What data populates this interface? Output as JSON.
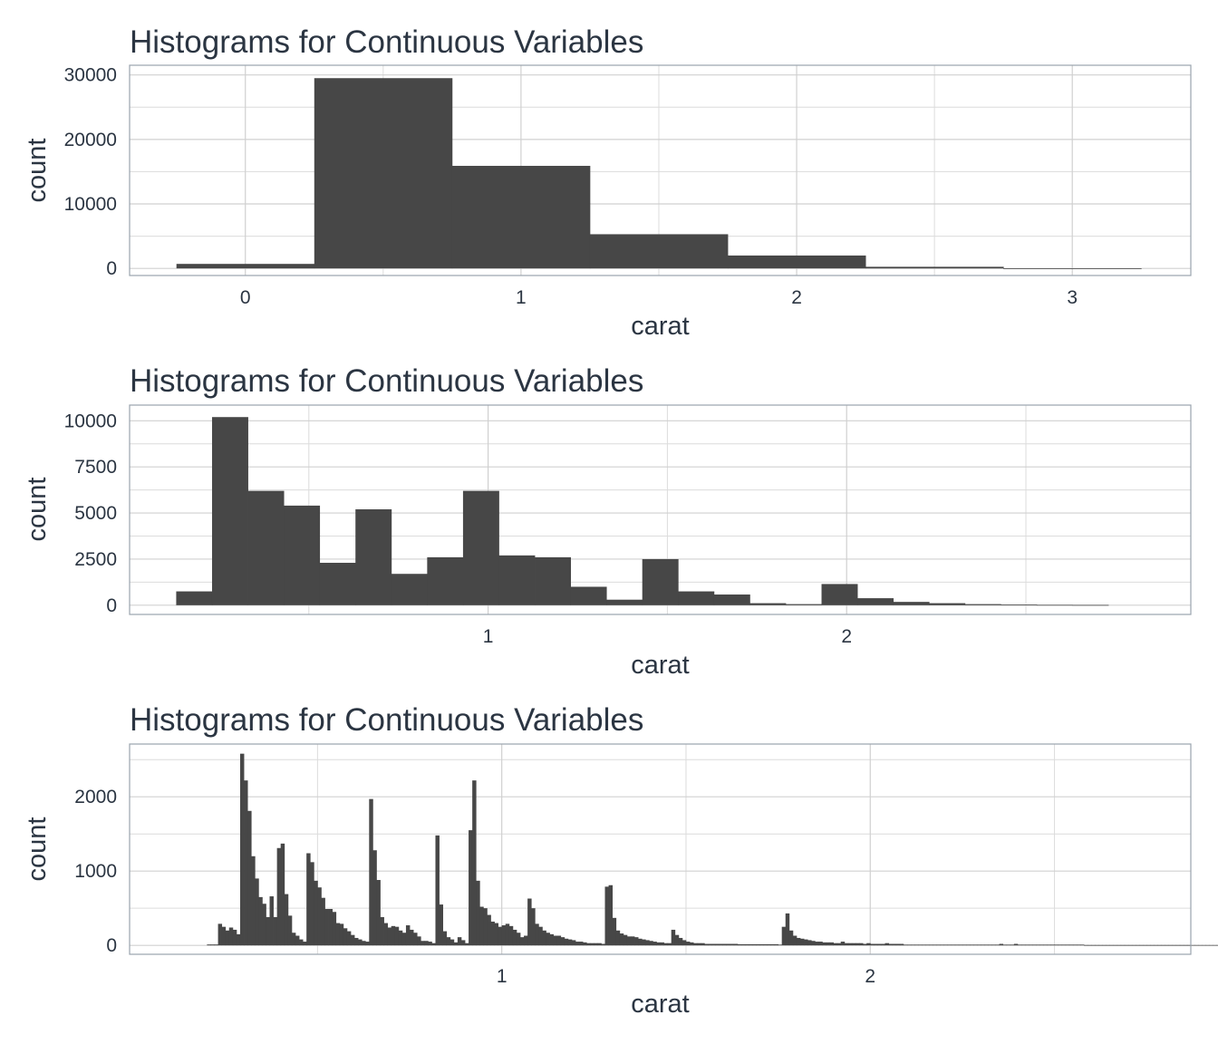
{
  "chart_data": [
    {
      "type": "bar",
      "title": "Histograms for Continuous Variables",
      "xlabel": "carat",
      "ylabel": "count",
      "xlim": [
        -0.42,
        3.43
      ],
      "ylim": [
        -1100,
        31500
      ],
      "xticks": [
        0,
        1,
        2,
        3
      ],
      "xtick_labels": [
        "0",
        "1",
        "2",
        "3"
      ],
      "yticks": [
        0,
        10000,
        20000,
        30000
      ],
      "ytick_labels": [
        "0",
        "10000",
        "20000",
        "30000"
      ],
      "grid": true,
      "bins": [
        {
          "x0": -0.25,
          "x1": 0.25,
          "count": 700
        },
        {
          "x0": 0.25,
          "x1": 0.75,
          "count": 29500
        },
        {
          "x0": 0.75,
          "x1": 1.25,
          "count": 15900
        },
        {
          "x0": 1.25,
          "x1": 1.75,
          "count": 5300
        },
        {
          "x0": 1.75,
          "x1": 2.25,
          "count": 2000
        },
        {
          "x0": 2.25,
          "x1": 2.75,
          "count": 250
        },
        {
          "x0": 2.75,
          "x1": 3.25,
          "count": 15
        }
      ]
    },
    {
      "type": "bar",
      "title": "Histograms for Continuous Variables",
      "xlabel": "carat",
      "ylabel": "count",
      "xlim": [
        0.0,
        2.96
      ],
      "ylim": [
        -500,
        10850
      ],
      "xticks": [
        1,
        2
      ],
      "xtick_labels": [
        "1",
        "2"
      ],
      "yticks": [
        0,
        2500,
        5000,
        7500,
        10000
      ],
      "ytick_labels": [
        "0",
        "2500",
        "5000",
        "7500",
        "10000"
      ],
      "grid": true,
      "bins": [
        {
          "x0": 0.13,
          "x1": 0.23,
          "count": 750
        },
        {
          "x0": 0.23,
          "x1": 0.33,
          "count": 10200
        },
        {
          "x0": 0.33,
          "x1": 0.43,
          "count": 6200
        },
        {
          "x0": 0.43,
          "x1": 0.53,
          "count": 5400
        },
        {
          "x0": 0.53,
          "x1": 0.63,
          "count": 2300
        },
        {
          "x0": 0.63,
          "x1": 0.73,
          "count": 5200
        },
        {
          "x0": 0.73,
          "x1": 0.83,
          "count": 1700
        },
        {
          "x0": 0.83,
          "x1": 0.93,
          "count": 2600
        },
        {
          "x0": 0.93,
          "x1": 1.03,
          "count": 6200
        },
        {
          "x0": 1.03,
          "x1": 1.13,
          "count": 2700
        },
        {
          "x0": 1.13,
          "x1": 1.23,
          "count": 2600
        },
        {
          "x0": 1.23,
          "x1": 1.33,
          "count": 1000
        },
        {
          "x0": 1.33,
          "x1": 1.43,
          "count": 300
        },
        {
          "x0": 1.43,
          "x1": 1.53,
          "count": 2500
        },
        {
          "x0": 1.53,
          "x1": 1.63,
          "count": 750
        },
        {
          "x0": 1.63,
          "x1": 1.73,
          "count": 580
        },
        {
          "x0": 1.73,
          "x1": 1.83,
          "count": 110
        },
        {
          "x0": 1.83,
          "x1": 1.93,
          "count": 60
        },
        {
          "x0": 1.93,
          "x1": 2.03,
          "count": 1150
        },
        {
          "x0": 2.03,
          "x1": 2.13,
          "count": 380
        },
        {
          "x0": 2.13,
          "x1": 2.23,
          "count": 180
        },
        {
          "x0": 2.23,
          "x1": 2.33,
          "count": 110
        },
        {
          "x0": 2.33,
          "x1": 2.43,
          "count": 60
        },
        {
          "x0": 2.43,
          "x1": 2.53,
          "count": 40
        },
        {
          "x0": 2.53,
          "x1": 2.63,
          "count": 20
        },
        {
          "x0": 2.63,
          "x1": 2.73,
          "count": 15
        }
      ]
    },
    {
      "type": "bar",
      "title": "Histograms for Continuous Variables",
      "xlabel": "carat",
      "ylabel": "count",
      "xlim": [
        -0.01,
        2.87
      ],
      "ylim": [
        -120,
        2710
      ],
      "xticks": [
        1,
        2
      ],
      "xtick_labels": [
        "1",
        "2"
      ],
      "yticks": [
        0,
        1000,
        2000
      ],
      "ytick_labels": [
        "0",
        "1000",
        "2000"
      ],
      "grid": true,
      "binwidth": 0.01,
      "x_start": 0.2,
      "counts": [
        12,
        12,
        12,
        290,
        250,
        200,
        240,
        210,
        150,
        2580,
        2220,
        1810,
        1200,
        900,
        650,
        560,
        380,
        660,
        380,
        1310,
        1370,
        690,
        400,
        170,
        130,
        80,
        50,
        1240,
        1120,
        870,
        780,
        640,
        490,
        490,
        450,
        300,
        290,
        230,
        190,
        140,
        100,
        80,
        60,
        50,
        1970,
        1280,
        880,
        380,
        300,
        240,
        260,
        250,
        200,
        170,
        270,
        210,
        170,
        120,
        60,
        60,
        50,
        30,
        1480,
        550,
        190,
        110,
        80,
        40,
        110,
        70,
        30,
        1550,
        2220,
        870,
        520,
        500,
        410,
        320,
        300,
        250,
        270,
        290,
        260,
        210,
        170,
        110,
        130,
        630,
        500,
        290,
        250,
        200,
        170,
        150,
        130,
        130,
        110,
        90,
        80,
        70,
        50,
        50,
        40,
        30,
        30,
        30,
        30,
        20,
        790,
        810,
        370,
        200,
        160,
        140,
        120,
        120,
        110,
        90,
        80,
        70,
        60,
        50,
        40,
        40,
        30,
        30,
        210,
        140,
        100,
        70,
        50,
        40,
        30,
        30,
        30,
        20,
        20,
        20,
        20,
        20,
        20,
        20,
        20,
        20,
        15,
        15,
        15,
        15,
        15,
        15,
        15,
        15,
        15,
        15,
        15,
        10,
        250,
        430,
        200,
        130,
        100,
        90,
        80,
        70,
        60,
        50,
        50,
        40,
        40,
        40,
        30,
        30,
        50,
        30,
        30,
        30,
        30,
        30,
        20,
        30,
        20,
        20,
        20,
        20,
        30,
        20,
        20,
        20,
        20,
        10,
        10,
        10,
        10,
        10,
        10,
        10,
        10,
        10,
        10,
        10,
        10,
        10,
        10,
        10,
        10,
        10,
        10,
        10,
        10,
        10,
        10,
        10,
        10,
        10,
        10,
        20,
        10,
        10,
        10,
        20,
        10,
        10,
        10,
        10,
        10,
        10,
        10,
        10,
        10,
        10,
        10,
        10,
        10,
        10,
        10,
        10,
        10,
        10,
        5,
        5,
        5,
        5,
        5,
        5,
        5,
        5,
        5,
        5,
        5,
        5,
        5,
        5,
        5,
        5,
        5,
        5,
        5,
        5,
        5,
        5,
        5,
        5,
        5,
        5,
        5,
        5,
        5,
        5,
        5,
        5,
        5,
        5,
        5,
        5,
        5,
        5,
        5,
        5,
        5,
        5,
        5,
        5,
        5,
        5,
        5,
        5,
        5,
        5,
        5,
        5,
        5,
        5,
        5,
        5,
        5,
        5,
        5,
        5
      ]
    }
  ]
}
